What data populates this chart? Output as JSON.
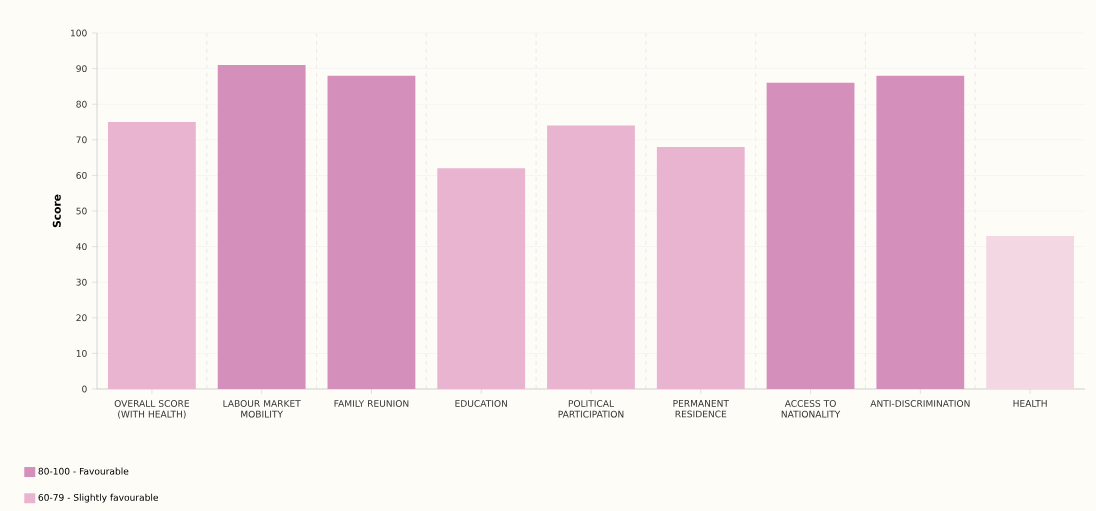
{
  "chart_data": {
    "type": "bar",
    "ylabel": "Score",
    "categories": [
      "OVERALL SCORE (WITH HEALTH)",
      "LABOUR MARKET MOBILITY",
      "FAMILY REUNION",
      "EDUCATION",
      "POLITICAL PARTICIPATION",
      "PERMANENT RESIDENCE",
      "ACCESS TO NATIONALITY",
      "ANTI-DISCRIMINATION",
      "HEALTH"
    ],
    "series": [
      {
        "name": "80-100 - Favourable",
        "color": "#d48fba",
        "values": [
          null,
          91,
          88,
          null,
          null,
          null,
          86,
          88,
          null
        ]
      },
      {
        "name": "60-79 - Slightly favourable",
        "color": "#e8b4cf",
        "values": [
          75,
          null,
          null,
          62,
          74,
          68,
          null,
          null,
          null
        ]
      },
      {
        "color": "#f3d8e4",
        "values": [
          null,
          null,
          null,
          null,
          null,
          null,
          null,
          null,
          43
        ]
      }
    ],
    "ylim": [
      0,
      100
    ],
    "yticks": [
      0,
      10,
      20,
      30,
      40,
      50,
      60,
      70,
      80,
      90,
      100
    ],
    "grid": true,
    "legend": "bottom left"
  }
}
